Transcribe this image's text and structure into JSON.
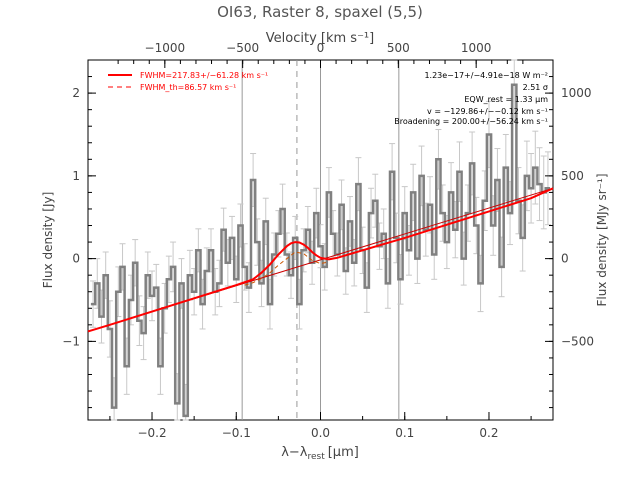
{
  "chart_data": {
    "type": "line",
    "title": "OI63, Raster 8, spaxel (5,5)",
    "xlabel": "λ−λ",
    "xlabel_sub": "rest",
    "xlabel_unit": "[μm]",
    "ylabel_left": "Flux density [Jy]",
    "ylabel_right": "Flux density [MJy sr⁻¹]",
    "top_axis_label": "Velocity [km s⁻¹]",
    "xlim": [
      -0.276,
      0.276
    ],
    "ylim": [
      -1.95,
      2.4
    ],
    "xticks": [
      -0.2,
      -0.1,
      0.0,
      0.1,
      0.2
    ],
    "xtick_labels": [
      "−0.2",
      "−0.1",
      "0.0",
      "0.1",
      "0.2"
    ],
    "yticks": [
      -1,
      0,
      1,
      2
    ],
    "ytick_labels": [
      "−1",
      "0",
      "1",
      "2"
    ],
    "top_ticks": [
      -1000,
      -500,
      0,
      500,
      1000
    ],
    "top_tick_labels": [
      "−1000",
      "−500",
      "0",
      "500",
      "1000"
    ],
    "right_ticks": [
      -500,
      0,
      500,
      1000
    ],
    "right_tick_labels": [
      "−500",
      "0",
      "500",
      "1000"
    ],
    "vertical_lines": [
      {
        "x": -0.093,
        "style": "solid"
      },
      {
        "x": -0.028,
        "style": "dashed"
      },
      {
        "x": 0.0,
        "style": "solid"
      },
      {
        "x": 0.093,
        "style": "solid"
      }
    ],
    "legend": [
      {
        "label": "FWHM=217.83+/−61.28 km s⁻¹",
        "style": "solid",
        "color": "#ff0000"
      },
      {
        "label": "FWHM_th=86.57 km s⁻¹",
        "style": "dashed",
        "color": "#ff0000"
      }
    ],
    "annotations": [
      "1.23e−17+/−4.91e−18 W m⁻²",
      "2.51 σ",
      "EQW_rest = 1.33 μm",
      "v = −129.86+/−−0.12 km s⁻¹",
      "Broadening = 200.00+/−56.24 km s⁻¹"
    ],
    "series": [
      {
        "name": "Spectrum",
        "style": "step",
        "color": "#808080",
        "x": [
          -0.27,
          -0.265,
          -0.26,
          -0.255,
          -0.25,
          -0.245,
          -0.24,
          -0.235,
          -0.23,
          -0.225,
          -0.22,
          -0.215,
          -0.21,
          -0.205,
          -0.2,
          -0.195,
          -0.19,
          -0.185,
          -0.18,
          -0.175,
          -0.17,
          -0.165,
          -0.16,
          -0.155,
          -0.15,
          -0.145,
          -0.14,
          -0.135,
          -0.13,
          -0.125,
          -0.12,
          -0.115,
          -0.11,
          -0.105,
          -0.1,
          -0.095,
          -0.09,
          -0.085,
          -0.08,
          -0.075,
          -0.07,
          -0.065,
          -0.06,
          -0.055,
          -0.05,
          -0.045,
          -0.04,
          -0.035,
          -0.03,
          -0.025,
          -0.02,
          -0.015,
          -0.01,
          -0.005,
          0.0,
          0.005,
          0.01,
          0.015,
          0.02,
          0.025,
          0.03,
          0.035,
          0.04,
          0.045,
          0.05,
          0.055,
          0.06,
          0.065,
          0.07,
          0.075,
          0.08,
          0.085,
          0.09,
          0.095,
          0.1,
          0.105,
          0.11,
          0.115,
          0.12,
          0.125,
          0.13,
          0.135,
          0.14,
          0.145,
          0.15,
          0.155,
          0.16,
          0.165,
          0.17,
          0.175,
          0.18,
          0.185,
          0.19,
          0.195,
          0.2,
          0.205,
          0.21,
          0.215,
          0.22,
          0.225,
          0.23,
          0.235,
          0.24,
          0.245,
          0.25,
          0.255,
          0.26,
          0.265,
          0.27
        ],
        "y": [
          -0.55,
          -0.3,
          -0.7,
          -0.2,
          -0.85,
          -1.8,
          -0.4,
          -0.1,
          -1.3,
          -0.5,
          -0.05,
          -0.75,
          -0.9,
          -0.2,
          -0.45,
          -0.35,
          -1.3,
          -0.6,
          -0.25,
          -0.1,
          -1.75,
          -0.3,
          -1.9,
          -0.2,
          -0.4,
          0.1,
          -0.55,
          -0.15,
          0.1,
          -0.4,
          -0.3,
          0.35,
          -0.05,
          0.25,
          -0.25,
          0.4,
          -0.1,
          -0.35,
          0.95,
          0.2,
          -0.3,
          0.45,
          -0.55,
          0.05,
          0.3,
          0.6,
          0.05,
          -0.2,
          0.25,
          -0.55,
          0.1,
          0.35,
          -0.05,
          0.55,
          0.15,
          -0.1,
          0.8,
          0.3,
          0.05,
          0.65,
          -0.15,
          0.45,
          -0.05,
          0.9,
          0.1,
          -0.35,
          0.55,
          0.7,
          0.15,
          0.3,
          -0.3,
          1.05,
          0.25,
          -0.25,
          0.55,
          0.1,
          0.8,
          0.0,
          1.0,
          0.35,
          0.65,
          0.05,
          1.2,
          0.55,
          0.2,
          0.8,
          0.35,
          1.05,
          0.0,
          0.55,
          1.15,
          0.4,
          -0.3,
          0.7,
          1.5,
          0.4,
          0.95,
          -0.1,
          1.1,
          0.55,
          2.1,
          0.7,
          0.25,
          1.0,
          0.85,
          1.1,
          0.9,
          0.8,
          0.85
        ],
        "err": [
          0.28,
          0.3,
          0.32,
          0.28,
          0.34,
          0.36,
          0.3,
          0.28,
          0.34,
          0.3,
          0.28,
          0.3,
          0.32,
          0.28,
          0.3,
          0.28,
          0.34,
          0.3,
          0.28,
          0.3,
          0.36,
          0.3,
          0.38,
          0.3,
          0.28,
          0.26,
          0.3,
          0.28,
          0.26,
          0.28,
          0.28,
          0.26,
          0.28,
          0.26,
          0.28,
          0.26,
          0.28,
          0.3,
          0.32,
          0.28,
          0.28,
          0.28,
          0.3,
          0.26,
          0.28,
          0.3,
          0.26,
          0.28,
          0.26,
          0.3,
          0.26,
          0.28,
          0.26,
          0.3,
          0.26,
          0.28,
          0.3,
          0.28,
          0.26,
          0.3,
          0.28,
          0.3,
          0.28,
          0.32,
          0.28,
          0.3,
          0.3,
          0.32,
          0.28,
          0.3,
          0.3,
          0.34,
          0.3,
          0.3,
          0.32,
          0.3,
          0.34,
          0.3,
          0.36,
          0.32,
          0.34,
          0.3,
          0.36,
          0.34,
          0.32,
          0.36,
          0.34,
          0.36,
          0.32,
          0.34,
          0.38,
          0.34,
          0.34,
          0.36,
          0.4,
          0.36,
          0.38,
          0.36,
          0.4,
          0.38,
          0.44,
          0.4,
          0.4,
          0.42,
          0.42,
          0.44,
          0.44,
          0.44,
          0.44
        ]
      },
      {
        "name": "Continuum",
        "style": "thin-solid",
        "color": "#cc0000",
        "x": [
          -0.276,
          0.276
        ],
        "y": [
          -0.88,
          0.85
        ]
      },
      {
        "name": "Fit",
        "style": "thick-solid",
        "color": "#ff0000",
        "x": [
          -0.276,
          -0.25,
          -0.2,
          -0.15,
          -0.1,
          -0.08,
          -0.07,
          -0.06,
          -0.05,
          -0.04,
          -0.035,
          -0.03,
          -0.025,
          -0.02,
          -0.015,
          -0.01,
          -0.005,
          0.0,
          0.01,
          0.02,
          0.05,
          0.1,
          0.15,
          0.2,
          0.25,
          0.276
        ],
        "y": [
          -0.88,
          -0.8,
          -0.64,
          -0.48,
          -0.32,
          -0.25,
          -0.17,
          -0.07,
          0.05,
          0.15,
          0.185,
          0.2,
          0.195,
          0.17,
          0.13,
          0.08,
          0.04,
          0.01,
          -0.01,
          0.01,
          0.1,
          0.25,
          0.41,
          0.57,
          0.73,
          0.85
        ]
      },
      {
        "name": "Gaussian components",
        "style": "dashed",
        "color": "#cc5500",
        "x": [
          -0.09,
          -0.08,
          -0.07,
          -0.06,
          -0.05,
          -0.04,
          -0.03,
          -0.02,
          -0.01,
          0.0,
          0.01
        ],
        "y": [
          -0.32,
          -0.29,
          -0.24,
          -0.17,
          -0.08,
          0.0,
          0.08,
          0.06,
          -0.02,
          -0.06,
          -0.04
        ]
      }
    ]
  }
}
